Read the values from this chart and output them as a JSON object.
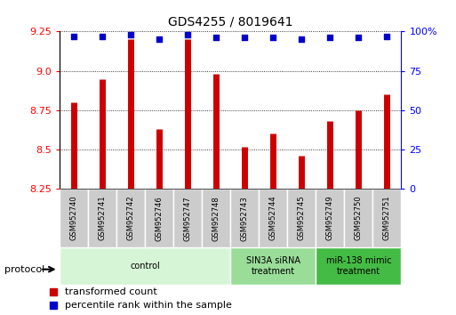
{
  "title": "GDS4255 / 8019641",
  "samples": [
    "GSM952740",
    "GSM952741",
    "GSM952742",
    "GSM952746",
    "GSM952747",
    "GSM952748",
    "GSM952743",
    "GSM952744",
    "GSM952745",
    "GSM952749",
    "GSM952750",
    "GSM952751"
  ],
  "red_values": [
    8.8,
    8.95,
    9.2,
    8.63,
    9.2,
    8.98,
    8.52,
    8.6,
    8.46,
    8.68,
    8.75,
    8.85
  ],
  "blue_values": [
    97,
    97,
    98,
    95,
    98,
    96,
    96,
    96,
    95,
    96,
    96,
    97
  ],
  "ylim_left": [
    8.25,
    9.25
  ],
  "ylim_right": [
    0,
    100
  ],
  "yticks_left": [
    8.25,
    8.5,
    8.75,
    9.0,
    9.25
  ],
  "yticks_right": [
    0,
    25,
    50,
    75,
    100
  ],
  "groups": [
    {
      "label": "control",
      "start": 0,
      "end": 5,
      "color": "#d6f5d6"
    },
    {
      "label": "SIN3A siRNA\ntreatment",
      "start": 6,
      "end": 8,
      "color": "#99dd99"
    },
    {
      "label": "miR-138 mimic\ntreatment",
      "start": 9,
      "end": 11,
      "color": "#44bb44"
    }
  ],
  "bar_color": "#cc0000",
  "dot_color": "#0000cc",
  "grid_color": "#000000",
  "background_color": "#ffffff",
  "label_bg_color": "#cccccc",
  "legend_red_label": "transformed count",
  "legend_blue_label": "percentile rank within the sample",
  "protocol_label": "protocol"
}
